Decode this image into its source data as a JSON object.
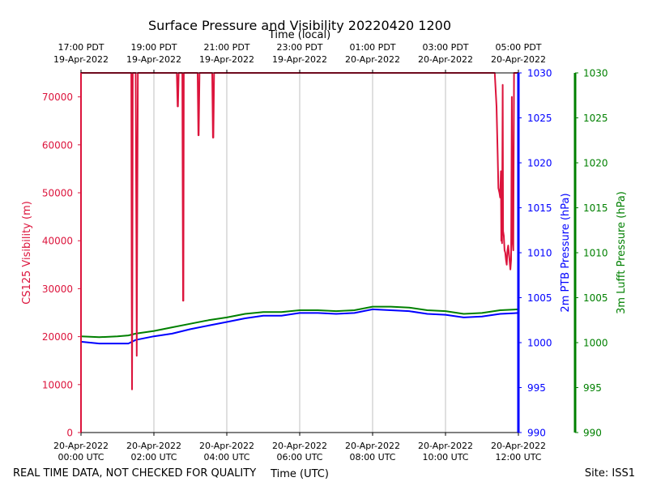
{
  "chart_data": {
    "type": "line",
    "title": "Surface Pressure and Visibility 20220420 1200",
    "top_axis_label": "Time (local)",
    "xlabel": "Time (UTC)",
    "footer_left": "REAL TIME DATA, NOT CHECKED FOR QUALITY",
    "footer_right": "Site: ISS1",
    "xlim_hours": [
      0,
      12
    ],
    "x_ticks_hours": [
      0,
      2,
      4,
      6,
      8,
      10,
      12
    ],
    "x_tick_labels_utc": [
      [
        "20-Apr-2022",
        "00:00 UTC"
      ],
      [
        "20-Apr-2022",
        "02:00 UTC"
      ],
      [
        "20-Apr-2022",
        "04:00 UTC"
      ],
      [
        "20-Apr-2022",
        "06:00 UTC"
      ],
      [
        "20-Apr-2022",
        "08:00 UTC"
      ],
      [
        "20-Apr-2022",
        "10:00 UTC"
      ],
      [
        "20-Apr-2022",
        "12:00 UTC"
      ]
    ],
    "x_tick_labels_local": [
      [
        "17:00 PDT",
        "19-Apr-2022"
      ],
      [
        "19:00 PDT",
        "19-Apr-2022"
      ],
      [
        "21:00 PDT",
        "19-Apr-2022"
      ],
      [
        "23:00 PDT",
        "19-Apr-2022"
      ],
      [
        "01:00 PDT",
        "20-Apr-2022"
      ],
      [
        "03:00 PDT",
        "20-Apr-2022"
      ],
      [
        "05:00 PDT",
        "20-Apr-2022"
      ]
    ],
    "axes": {
      "visibility": {
        "label": "CS125 Visibility (m)",
        "color": "#dc143c",
        "ylim": [
          0,
          75000
        ],
        "ticks": [
          0,
          10000,
          20000,
          30000,
          40000,
          50000,
          60000,
          70000
        ]
      },
      "ptb": {
        "label": "2m PTB Pressure (hPa)",
        "color": "#0000ff",
        "ylim": [
          990,
          1030
        ],
        "ticks": [
          990,
          995,
          1000,
          1005,
          1010,
          1015,
          1020,
          1025,
          1030
        ]
      },
      "lufft": {
        "label": "3m Lufft Pressure (hPa)",
        "color": "#008000",
        "ylim": [
          990,
          1030
        ],
        "ticks": [
          990,
          995,
          1000,
          1005,
          1010,
          1015,
          1020,
          1025,
          1030
        ]
      }
    },
    "series": [
      {
        "name": "CS125 Visibility",
        "axis": "visibility",
        "color": "#dc143c",
        "x": [
          0,
          0.0,
          0.01,
          0.01,
          1.0,
          1.3,
          1.38,
          1.39,
          1.4,
          1.41,
          1.42,
          1.44,
          1.5,
          1.52,
          1.53,
          1.54,
          1.56,
          2.0,
          2.63,
          2.65,
          2.66,
          2.68,
          2.7,
          2.78,
          2.8,
          2.81,
          2.82,
          2.84,
          3.0,
          3.2,
          3.22,
          3.23,
          3.25,
          3.3,
          3.6,
          3.62,
          3.63,
          3.65,
          3.7,
          11.0,
          11.3,
          11.35,
          11.4,
          11.43,
          11.45,
          11.48,
          11.5,
          11.52,
          11.53,
          11.54,
          11.55,
          11.57,
          11.58,
          11.6,
          11.62,
          11.64,
          11.66,
          11.68,
          11.7,
          11.72,
          11.75,
          11.78,
          11.8,
          11.82,
          11.84,
          11.86,
          11.88,
          11.9,
          11.92,
          11.94,
          11.96,
          11.98,
          12.0
        ],
        "values": [
          0,
          75000,
          75000,
          75000,
          75000,
          75000,
          75000,
          30000,
          9000,
          30000,
          75000,
          75000,
          75000,
          40000,
          16000,
          40000,
          75000,
          75000,
          75000,
          68000,
          68000,
          75000,
          75000,
          75000,
          27500,
          27500,
          75000,
          75000,
          75000,
          75000,
          62000,
          62000,
          75000,
          75000,
          75000,
          61500,
          61500,
          75000,
          75000,
          75000,
          75000,
          75000,
          68000,
          58000,
          51000,
          50000,
          49000,
          54500,
          40000,
          48000,
          39500,
          72500,
          42000,
          41000,
          38000,
          37500,
          36000,
          35000,
          38000,
          39000,
          36500,
          34000,
          36000,
          70000,
          40000,
          38000,
          75000,
          75000,
          75000,
          75000,
          75000,
          75000,
          75000
        ]
      },
      {
        "name": "2m PTB Pressure",
        "axis": "ptb",
        "color": "#0000ff",
        "x": [
          0,
          0.5,
          1.0,
          1.3,
          1.5,
          2.0,
          2.5,
          3.0,
          3.5,
          4.0,
          4.5,
          5.0,
          5.5,
          6.0,
          6.5,
          7.0,
          7.5,
          8.0,
          8.5,
          9.0,
          9.5,
          10.0,
          10.5,
          11.0,
          11.5,
          12.0
        ],
        "values": [
          1000.1,
          999.9,
          999.9,
          999.9,
          1000.3,
          1000.7,
          1001.0,
          1001.5,
          1001.9,
          1002.3,
          1002.7,
          1003.0,
          1003.0,
          1003.3,
          1003.3,
          1003.2,
          1003.3,
          1003.7,
          1003.6,
          1003.5,
          1003.2,
          1003.1,
          1002.8,
          1002.9,
          1003.2,
          1003.3
        ]
      },
      {
        "name": "3m Lufft Pressure",
        "axis": "lufft",
        "color": "#008000",
        "x": [
          0,
          0.5,
          1.0,
          1.3,
          1.5,
          2.0,
          2.5,
          3.0,
          3.5,
          4.0,
          4.5,
          5.0,
          5.5,
          6.0,
          6.5,
          7.0,
          7.5,
          8.0,
          8.5,
          9.0,
          9.5,
          10.0,
          10.5,
          11.0,
          11.5,
          12.0
        ],
        "values": [
          1000.7,
          1000.6,
          1000.7,
          1000.8,
          1001.0,
          1001.3,
          1001.7,
          1002.1,
          1002.5,
          1002.8,
          1003.2,
          1003.4,
          1003.4,
          1003.6,
          1003.6,
          1003.5,
          1003.6,
          1004.0,
          1004.0,
          1003.9,
          1003.6,
          1003.5,
          1003.2,
          1003.3,
          1003.6,
          1003.7
        ]
      }
    ]
  }
}
